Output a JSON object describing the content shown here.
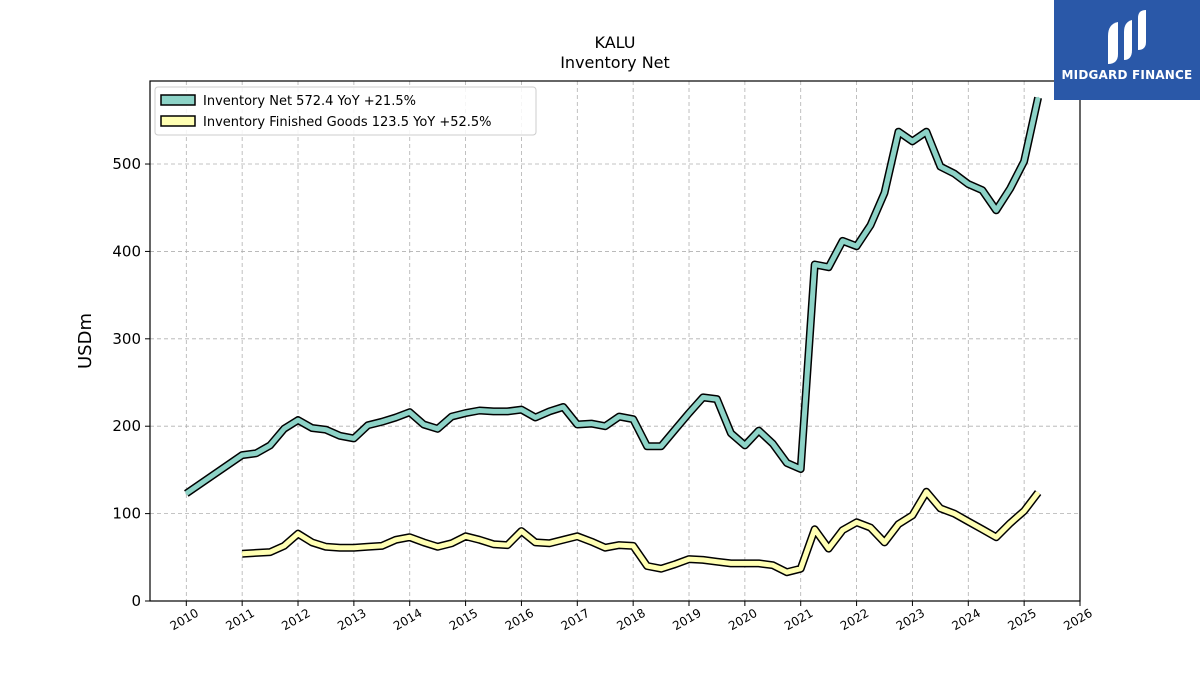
{
  "brand": {
    "name": "MIDGARD FINANCE",
    "color": "#2a58a8"
  },
  "chart_data": {
    "type": "line",
    "title": "KALU",
    "subtitle": "Inventory Net",
    "xlabel": "",
    "ylabel": "USDm",
    "xlim": [
      2009.35,
      2026.0
    ],
    "ylim": [
      0,
      595
    ],
    "x_ticks": [
      "2010",
      "2011",
      "2012",
      "2013",
      "2014",
      "2015",
      "2016",
      "2017",
      "2018",
      "2019",
      "2020",
      "2021",
      "2022",
      "2023",
      "2024",
      "2025",
      "2026"
    ],
    "y_ticks": [
      0,
      100,
      200,
      300,
      400,
      500
    ],
    "grid": true,
    "legend_position": "top-left",
    "series": [
      {
        "name": "Inventory Net  572.4 YoY +21.5%",
        "color": "#8dd3c7",
        "points": [
          [
            2010.0,
            123
          ],
          [
            2011.0,
            167
          ],
          [
            2011.25,
            169
          ],
          [
            2011.5,
            178
          ],
          [
            2011.75,
            197
          ],
          [
            2012.0,
            207
          ],
          [
            2012.25,
            198
          ],
          [
            2012.5,
            196
          ],
          [
            2012.75,
            189
          ],
          [
            2013.0,
            186
          ],
          [
            2013.25,
            201
          ],
          [
            2013.5,
            205
          ],
          [
            2013.75,
            210
          ],
          [
            2014.0,
            216
          ],
          [
            2014.25,
            202
          ],
          [
            2014.5,
            197
          ],
          [
            2014.75,
            211
          ],
          [
            2015.0,
            215
          ],
          [
            2015.25,
            218
          ],
          [
            2015.5,
            217
          ],
          [
            2015.75,
            217
          ],
          [
            2016.0,
            219
          ],
          [
            2016.25,
            210
          ],
          [
            2016.5,
            217
          ],
          [
            2016.75,
            222
          ],
          [
            2017.0,
            202
          ],
          [
            2017.25,
            203
          ],
          [
            2017.5,
            200
          ],
          [
            2017.75,
            211
          ],
          [
            2018.0,
            208
          ],
          [
            2018.25,
            177
          ],
          [
            2018.5,
            177
          ],
          [
            2018.75,
            196
          ],
          [
            2019.0,
            215
          ],
          [
            2019.25,
            233
          ],
          [
            2019.5,
            231
          ],
          [
            2019.75,
            192
          ],
          [
            2020.0,
            178
          ],
          [
            2020.25,
            195
          ],
          [
            2020.5,
            180
          ],
          [
            2020.75,
            158
          ],
          [
            2021.0,
            151
          ],
          [
            2021.25,
            385
          ],
          [
            2021.5,
            382
          ],
          [
            2021.75,
            412
          ],
          [
            2022.0,
            406
          ],
          [
            2022.25,
            430
          ],
          [
            2022.5,
            467
          ],
          [
            2022.75,
            537
          ],
          [
            2023.0,
            526
          ],
          [
            2023.25,
            537
          ],
          [
            2023.5,
            497
          ],
          [
            2023.75,
            489
          ],
          [
            2024.0,
            477
          ],
          [
            2024.25,
            470
          ],
          [
            2024.5,
            447
          ],
          [
            2024.75,
            472
          ],
          [
            2025.0,
            503
          ],
          [
            2025.25,
            576
          ]
        ]
      },
      {
        "name": "Inventory Finished Goods  123.5 YoY +52.5%",
        "color": "#ffffb3",
        "points": [
          [
            2011.0,
            54
          ],
          [
            2011.25,
            55
          ],
          [
            2011.5,
            56
          ],
          [
            2011.75,
            63
          ],
          [
            2012.0,
            77
          ],
          [
            2012.25,
            67
          ],
          [
            2012.5,
            62
          ],
          [
            2012.75,
            61
          ],
          [
            2013.0,
            61
          ],
          [
            2013.25,
            62
          ],
          [
            2013.5,
            63
          ],
          [
            2013.75,
            70
          ],
          [
            2014.0,
            73
          ],
          [
            2014.25,
            67
          ],
          [
            2014.5,
            62
          ],
          [
            2014.75,
            66
          ],
          [
            2015.0,
            74
          ],
          [
            2015.25,
            70
          ],
          [
            2015.5,
            65
          ],
          [
            2015.75,
            64
          ],
          [
            2016.0,
            80
          ],
          [
            2016.25,
            67
          ],
          [
            2016.5,
            66
          ],
          [
            2016.75,
            70
          ],
          [
            2017.0,
            74
          ],
          [
            2017.25,
            68
          ],
          [
            2017.5,
            61
          ],
          [
            2017.75,
            64
          ],
          [
            2018.0,
            63
          ],
          [
            2018.25,
            40
          ],
          [
            2018.5,
            37
          ],
          [
            2018.75,
            42
          ],
          [
            2019.0,
            48
          ],
          [
            2019.25,
            47
          ],
          [
            2019.5,
            45
          ],
          [
            2019.75,
            43
          ],
          [
            2020.0,
            43
          ],
          [
            2020.25,
            43
          ],
          [
            2020.5,
            41
          ],
          [
            2020.75,
            33
          ],
          [
            2021.0,
            37
          ],
          [
            2021.25,
            82
          ],
          [
            2021.5,
            60
          ],
          [
            2021.75,
            81
          ],
          [
            2022.0,
            90
          ],
          [
            2022.25,
            84
          ],
          [
            2022.5,
            67
          ],
          [
            2022.75,
            88
          ],
          [
            2023.0,
            98
          ],
          [
            2023.25,
            125
          ],
          [
            2023.5,
            106
          ],
          [
            2023.75,
            100
          ],
          [
            2024.0,
            91
          ],
          [
            2024.25,
            82
          ],
          [
            2024.5,
            73
          ],
          [
            2024.75,
            89
          ],
          [
            2025.0,
            103
          ],
          [
            2025.25,
            124
          ]
        ]
      }
    ]
  }
}
